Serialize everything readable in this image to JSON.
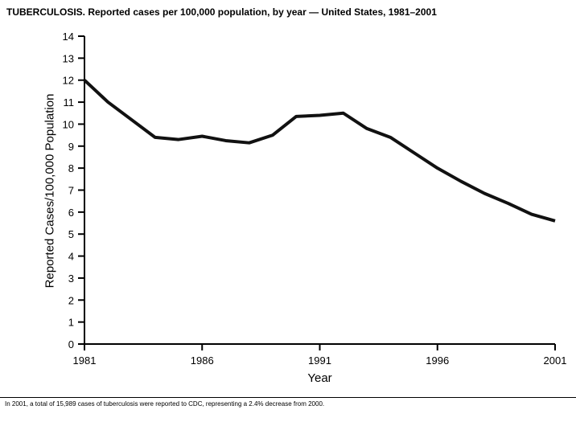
{
  "chart_data": {
    "type": "line",
    "title": "TUBERCULOSIS. Reported cases per 100,000 population, by year — United States, 1981–2001",
    "xlabel": "Year",
    "ylabel": "Reported Cases/100,000 Population",
    "x": [
      1981,
      1982,
      1983,
      1984,
      1985,
      1986,
      1987,
      1988,
      1989,
      1990,
      1991,
      1992,
      1993,
      1994,
      1995,
      1996,
      1997,
      1998,
      1999,
      2000,
      2001
    ],
    "values": [
      12.0,
      11.0,
      10.2,
      9.4,
      9.3,
      9.45,
      9.25,
      9.15,
      9.5,
      10.35,
      10.4,
      10.5,
      9.8,
      9.4,
      8.7,
      8.0,
      7.4,
      6.85,
      6.4,
      5.9,
      5.6
    ],
    "ylim": [
      0,
      14
    ],
    "ytick_step": 1,
    "xticks": [
      1981,
      1986,
      1991,
      1996,
      2001
    ],
    "grid": false,
    "legend": "none",
    "line_color": "#111111",
    "line_width": 4,
    "axis_color": "#000000",
    "tick_font_size": 13
  },
  "footnote": {
    "text": "In 2001, a total of 15,989 cases of tuberculosis were reported to CDC, representing a 2.4% decrease from 2000."
  }
}
